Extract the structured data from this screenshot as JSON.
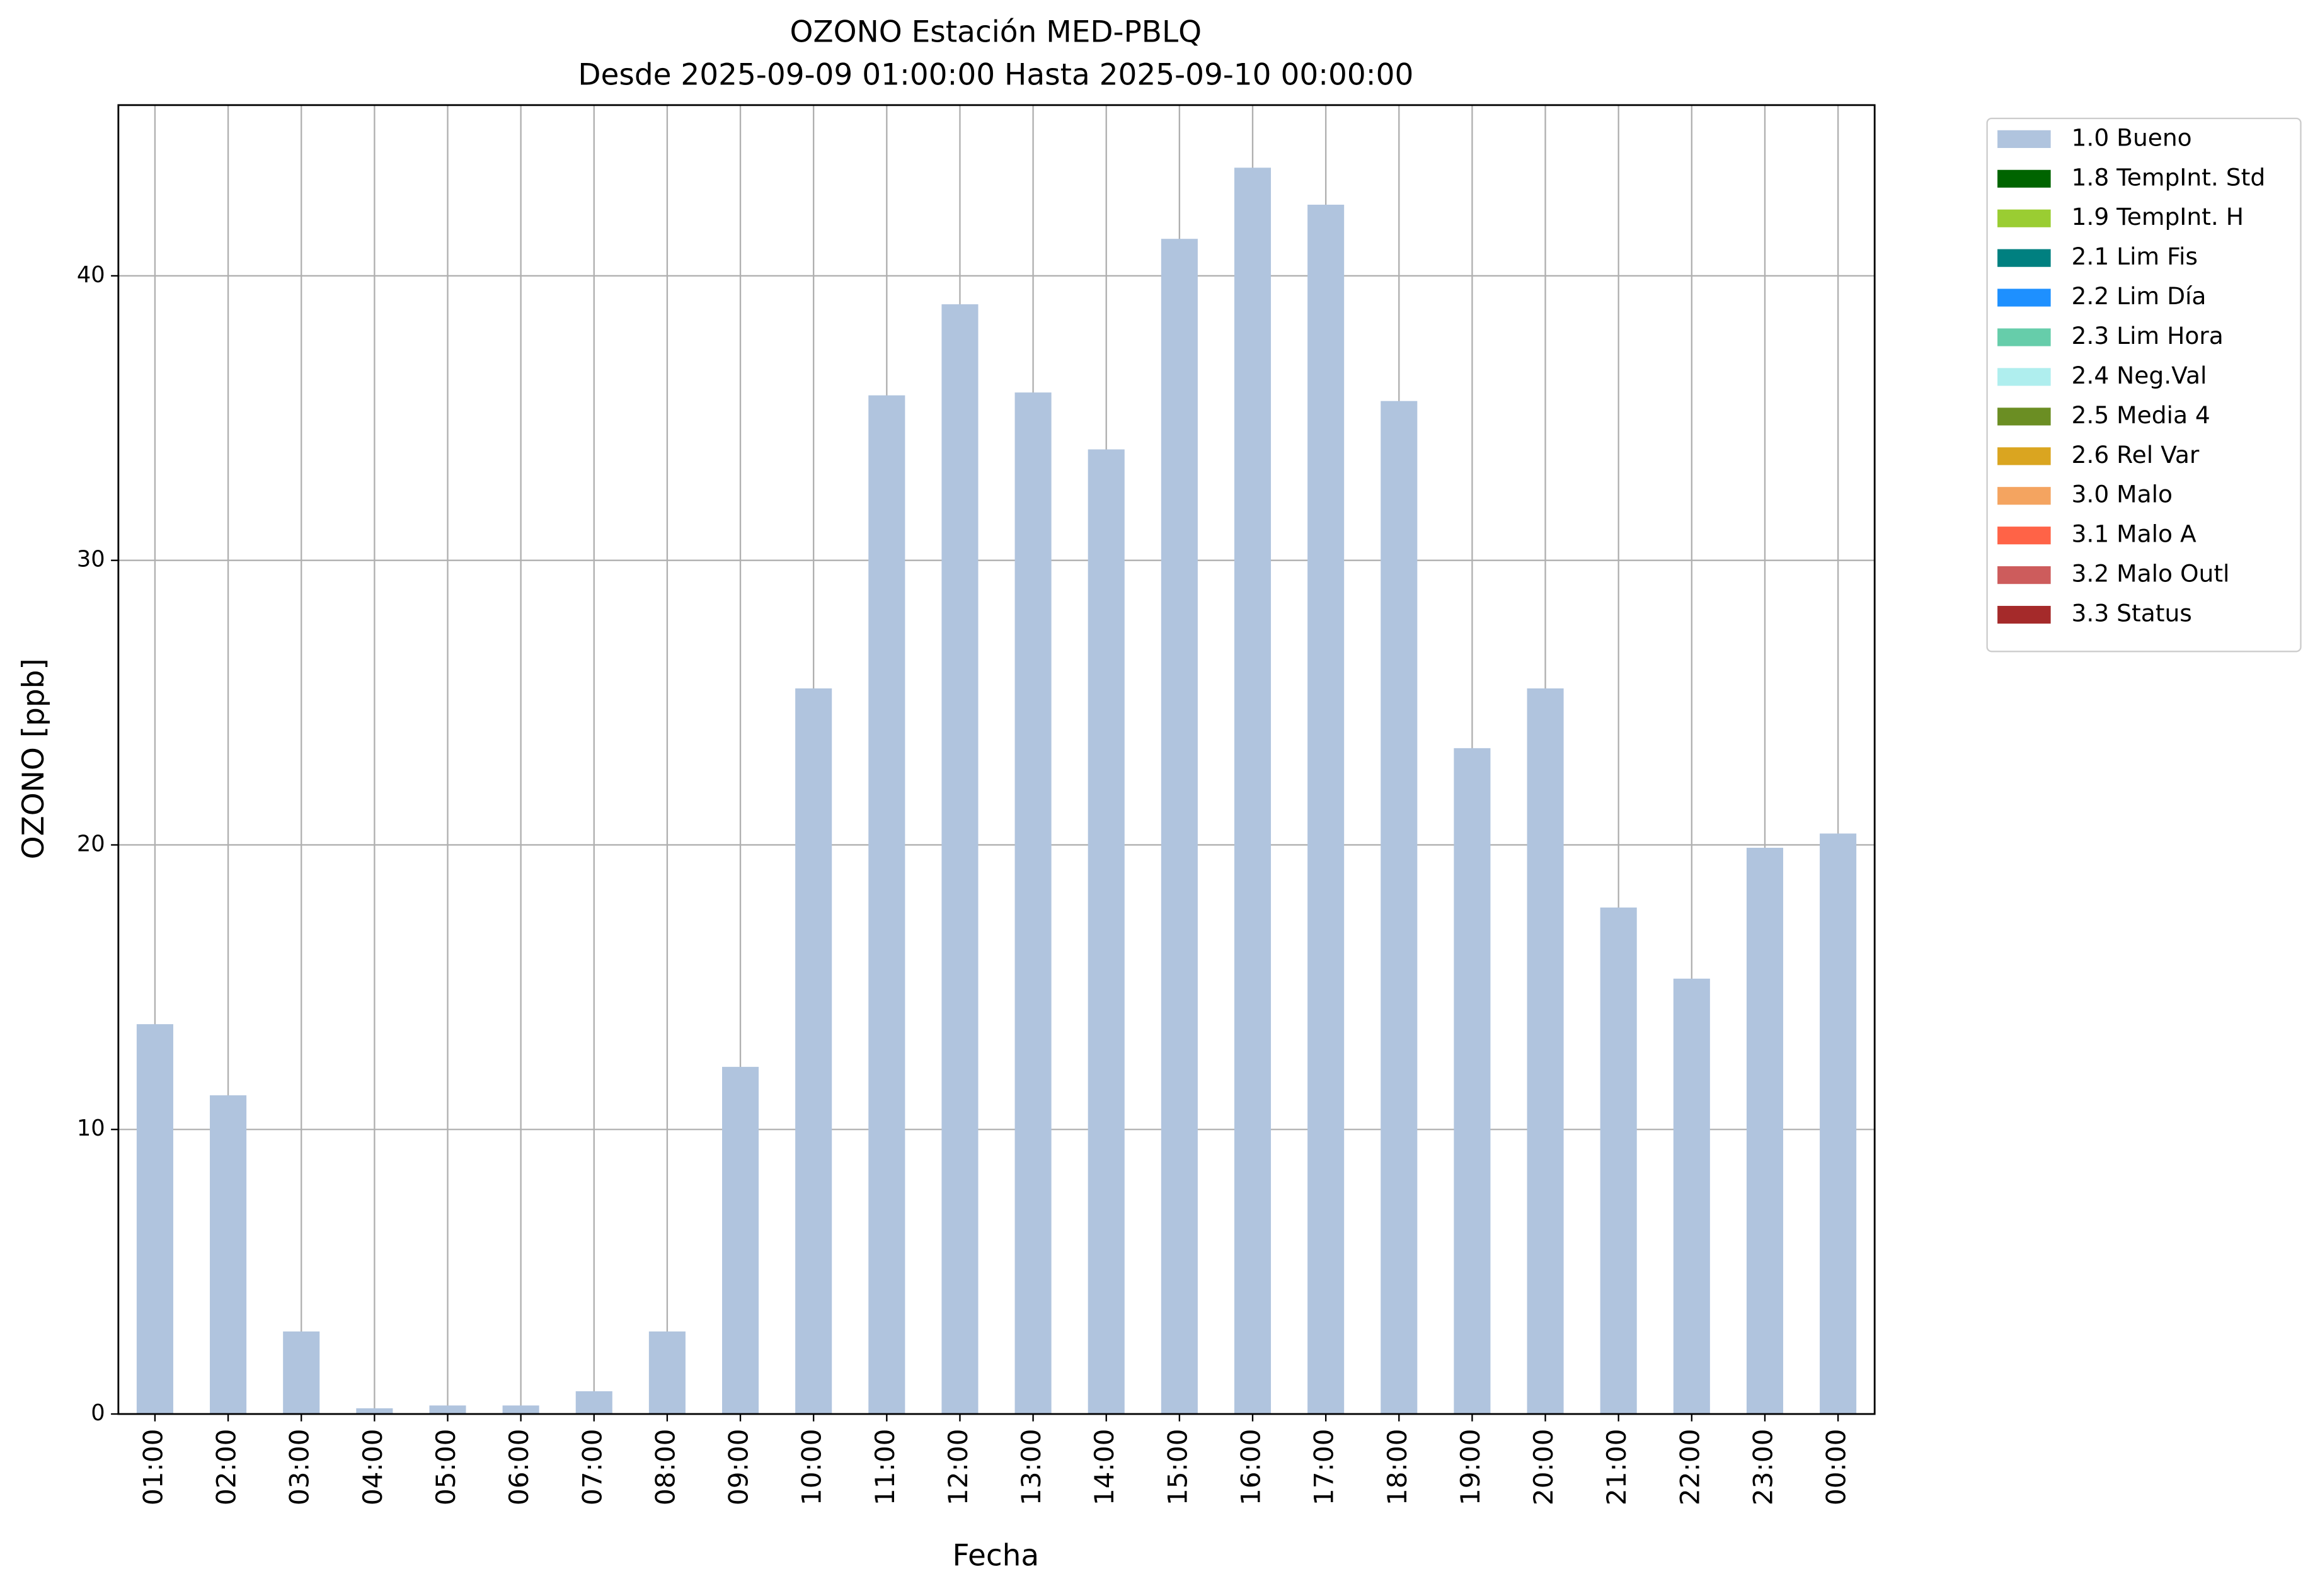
{
  "chart_data": {
    "type": "stacked-bar",
    "title": "OZONO Estación MED-PBLQ",
    "subtitle": "Desde 2025-09-09 01:00:00 Hasta 2025-09-10 00:00:00",
    "x_label": "Fecha",
    "y_label": "OZONO [ppb]",
    "categories": [
      "01:00",
      "02:00",
      "03:00",
      "04:00",
      "05:00",
      "06:00",
      "07:00",
      "08:00",
      "09:00",
      "10:00",
      "11:00",
      "12:00",
      "13:00",
      "14:00",
      "15:00",
      "16:00",
      "17:00",
      "18:00",
      "19:00",
      "20:00",
      "21:00",
      "22:00",
      "23:00",
      "00:00"
    ],
    "series": [
      {
        "name": "1.0 Bueno",
        "color": "#b0c4de",
        "values": [
          13.7,
          11.2,
          2.9,
          0.2,
          0.3,
          0.3,
          0.8,
          2.9,
          12.2,
          25.5,
          35.8,
          39.0,
          35.9,
          33.9,
          41.3,
          43.8,
          42.5,
          35.6,
          23.4,
          25.5,
          17.8,
          15.3,
          19.9,
          20.4
        ]
      },
      {
        "name": "1.8 TempInt. Std",
        "color": "#006400",
        "values": [
          0,
          0,
          0,
          0,
          0,
          0,
          0,
          0,
          0,
          0,
          0,
          0,
          0,
          0,
          0,
          0,
          0,
          0,
          0,
          0,
          0,
          0,
          0,
          0
        ]
      },
      {
        "name": "1.9 TempInt. H",
        "color": "#9acd32",
        "values": [
          0,
          0,
          0,
          0,
          0,
          0,
          0,
          0,
          0,
          0,
          0,
          0,
          0,
          0,
          0,
          0,
          0,
          0,
          0,
          0,
          0,
          0,
          0,
          0
        ]
      },
      {
        "name": "2.1 Lim Fis",
        "color": "#008080",
        "values": [
          0,
          0,
          0,
          0,
          0,
          0,
          0,
          0,
          0,
          0,
          0,
          0,
          0,
          0,
          0,
          0,
          0,
          0,
          0,
          0,
          0,
          0,
          0,
          0
        ]
      },
      {
        "name": "2.2 Lim Día",
        "color": "#1e90ff",
        "values": [
          0,
          0,
          0,
          0,
          0,
          0,
          0,
          0,
          0,
          0,
          0,
          0,
          0,
          0,
          0,
          0,
          0,
          0,
          0,
          0,
          0,
          0,
          0,
          0
        ]
      },
      {
        "name": "2.3 Lim Hora",
        "color": "#66cdaa",
        "values": [
          0,
          0,
          0,
          0,
          0,
          0,
          0,
          0,
          0,
          0,
          0,
          0,
          0,
          0,
          0,
          0,
          0,
          0,
          0,
          0,
          0,
          0,
          0,
          0
        ]
      },
      {
        "name": "2.4 Neg.Val",
        "color": "#afeeee",
        "values": [
          0,
          0,
          0,
          0,
          0,
          0,
          0,
          0,
          0,
          0,
          0,
          0,
          0,
          0,
          0,
          0,
          0,
          0,
          0,
          0,
          0,
          0,
          0,
          0
        ]
      },
      {
        "name": "2.5 Media 4",
        "color": "#6b8e23",
        "values": [
          0,
          0,
          0,
          0,
          0,
          0,
          0,
          0,
          0,
          0,
          0,
          0,
          0,
          0,
          0,
          0,
          0,
          0,
          0,
          0,
          0,
          0,
          0,
          0
        ]
      },
      {
        "name": "2.6 Rel Var",
        "color": "#daa520",
        "values": [
          0,
          0,
          0,
          0,
          0,
          0,
          0,
          0,
          0,
          0,
          0,
          0,
          0,
          0,
          0,
          0,
          0,
          0,
          0,
          0,
          0,
          0,
          0,
          0
        ]
      },
      {
        "name": "3.0 Malo",
        "color": "#f4a460",
        "values": [
          0,
          0,
          0,
          0,
          0,
          0,
          0,
          0,
          0,
          0,
          0,
          0,
          0,
          0,
          0,
          0,
          0,
          0,
          0,
          0,
          0,
          0,
          0,
          0
        ]
      },
      {
        "name": "3.1 Malo A",
        "color": "#ff6347",
        "values": [
          0,
          0,
          0,
          0,
          0,
          0,
          0,
          0,
          0,
          0,
          0,
          0,
          0,
          0,
          0,
          0,
          0,
          0,
          0,
          0,
          0,
          0,
          0,
          0
        ]
      },
      {
        "name": "3.2 Malo Outl",
        "color": "#cd5c5c",
        "values": [
          0,
          0,
          0,
          0,
          0,
          0,
          0,
          0,
          0,
          0,
          0,
          0,
          0,
          0,
          0,
          0,
          0,
          0,
          0,
          0,
          0,
          0,
          0,
          0
        ]
      },
      {
        "name": "3.3 Status",
        "color": "#a52a2a",
        "values": [
          0,
          0,
          0,
          0,
          0,
          0,
          0,
          0,
          0,
          0,
          0,
          0,
          0,
          0,
          0,
          0,
          0,
          0,
          0,
          0,
          0,
          0,
          0,
          0
        ]
      }
    ],
    "ylim": [
      0,
      46
    ],
    "yticks": [
      0,
      10,
      20,
      30,
      40
    ],
    "grid": true,
    "legend": "outside-upper-right"
  }
}
